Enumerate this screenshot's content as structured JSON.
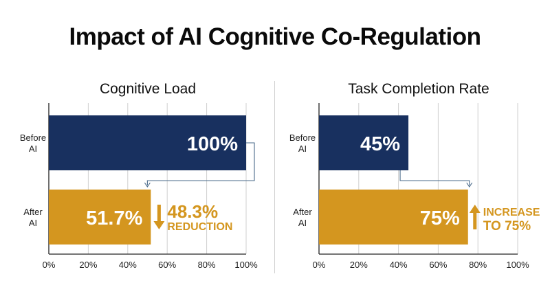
{
  "title": "Impact of AI Cognitive Co-Regulation",
  "colors": {
    "before": "#18305f",
    "after": "#d4961f",
    "grid": "#cfcfcf",
    "axis": "#222222",
    "connector": "#4a6a8a"
  },
  "chart_data": [
    {
      "type": "bar",
      "orientation": "horizontal",
      "title": "Cognitive Load",
      "categories": [
        "Before\nAI",
        "After\nAI"
      ],
      "values": [
        100,
        51.7
      ],
      "value_labels": [
        "100%",
        "51.7%"
      ],
      "xlim": [
        0,
        100
      ],
      "xticks": [
        "0%",
        "20%",
        "40%",
        "60%",
        "80%",
        "100%"
      ],
      "grid": true,
      "annotation": {
        "direction": "down",
        "line1": "48.3%",
        "line2": "REDUCTION"
      }
    },
    {
      "type": "bar",
      "orientation": "horizontal",
      "title": "Task Completion Rate",
      "categories": [
        "Before\nAI",
        "After\nAI"
      ],
      "values": [
        45,
        75
      ],
      "value_labels": [
        "45%",
        "75%"
      ],
      "xlim": [
        0,
        100
      ],
      "xticks": [
        "0%",
        "20%",
        "40%",
        "60%",
        "80%",
        "100%"
      ],
      "grid": true,
      "annotation": {
        "direction": "up",
        "line1": "INCREASE",
        "line2": "TO 75%"
      }
    }
  ]
}
